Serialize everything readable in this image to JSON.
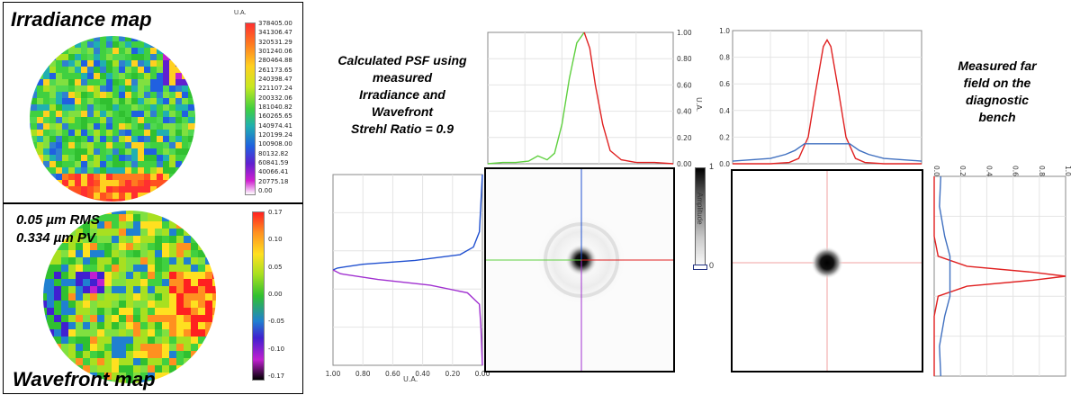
{
  "irradiance_map": {
    "title": "Irradiance map",
    "unit": "U.A.",
    "colorbar_ticks": [
      "378405.00",
      "341306.47",
      "320531.29",
      "301240.06",
      "280464.88",
      "261173.65",
      "240398.47",
      "221107.24",
      "200332.06",
      "181040.82",
      "160265.65",
      "140974.41",
      "120199.24",
      "100908.00",
      "80132.82",
      "60841.59",
      "40066.41",
      "20775.18",
      "0.00"
    ]
  },
  "wavefront_map": {
    "title": "Wavefront map",
    "rms_label": "0.05 µm RMS",
    "pv_label": "0.334 µm PV",
    "colorbar_ticks": [
      "0.17",
      "0.10",
      "0.05",
      "0.00",
      "-0.05",
      "-0.10",
      "-0.17"
    ]
  },
  "calculated_caption": [
    "Calculated PSF using",
    "measured",
    "Irradiance and",
    "Wavefront",
    "Strehl Ratio = 0.9"
  ],
  "measured_caption": [
    "Measured far",
    "field on the",
    "diagnostic",
    "bench"
  ],
  "amplitude_bar": {
    "label": "Amplitude",
    "top": "1",
    "bottom": "0"
  },
  "chart_data": [
    {
      "id": "calc-horizontal-profile",
      "type": "line",
      "ylabel": "U.A.",
      "yticks": [
        "1.00",
        "0.80",
        "0.60",
        "0.40",
        "0.20",
        "0.00"
      ],
      "ylim": [
        0,
        1
      ],
      "xlim": [
        0,
        1
      ],
      "series": [
        {
          "color": "#5fd03f",
          "x": [
            0.0,
            0.08,
            0.15,
            0.22,
            0.27,
            0.32,
            0.36,
            0.4,
            0.44,
            0.48,
            0.52
          ],
          "y": [
            0.0,
            0.01,
            0.01,
            0.02,
            0.06,
            0.03,
            0.08,
            0.3,
            0.65,
            0.92,
            1.0
          ]
        },
        {
          "color": "#e02020",
          "x": [
            0.52,
            0.55,
            0.58,
            0.62,
            0.66,
            0.72,
            0.8,
            0.9,
            1.0
          ],
          "y": [
            1.0,
            0.88,
            0.6,
            0.3,
            0.1,
            0.03,
            0.01,
            0.01,
            0.0
          ]
        }
      ]
    },
    {
      "id": "calc-vertical-profile",
      "type": "line",
      "xlabel": "U.A.",
      "xticks": [
        "1.00",
        "0.80",
        "0.60",
        "0.40",
        "0.20",
        "0.00"
      ],
      "xlim": [
        1,
        0
      ],
      "ylim": [
        0,
        1
      ],
      "series": [
        {
          "color": "#2050d0",
          "y": [
            0.0,
            0.15,
            0.3,
            0.38,
            0.42,
            0.45,
            0.47,
            0.49,
            0.5
          ],
          "x": [
            0.0,
            0.01,
            0.02,
            0.06,
            0.15,
            0.45,
            0.8,
            0.97,
            1.0
          ]
        },
        {
          "color": "#a030d0",
          "y": [
            0.5,
            0.52,
            0.55,
            0.58,
            0.62,
            0.68,
            0.8,
            1.0
          ],
          "x": [
            1.0,
            0.95,
            0.7,
            0.35,
            0.1,
            0.02,
            0.01,
            0.0
          ]
        }
      ]
    },
    {
      "id": "meas-horizontal-profile",
      "type": "line",
      "yticks": [
        "1.0",
        "0.8",
        "0.6",
        "0.4",
        "0.2",
        "0.0"
      ],
      "ylim": [
        0,
        1
      ],
      "xlim": [
        0,
        1
      ],
      "series": [
        {
          "color": "#e02020",
          "x": [
            0.0,
            0.2,
            0.3,
            0.35,
            0.4,
            0.44,
            0.48,
            0.5,
            0.52,
            0.56,
            0.6,
            0.65,
            0.7,
            0.8,
            1.0
          ],
          "y": [
            0.0,
            0.0,
            0.01,
            0.04,
            0.2,
            0.55,
            0.88,
            0.93,
            0.88,
            0.55,
            0.2,
            0.04,
            0.01,
            0.0,
            0.0
          ]
        },
        {
          "color": "#4070c0",
          "x": [
            0.0,
            0.1,
            0.2,
            0.28,
            0.33,
            0.38,
            0.62,
            0.67,
            0.72,
            0.8,
            0.9,
            1.0
          ],
          "y": [
            0.02,
            0.03,
            0.04,
            0.07,
            0.1,
            0.15,
            0.15,
            0.1,
            0.07,
            0.04,
            0.03,
            0.02
          ]
        }
      ]
    },
    {
      "id": "meas-vertical-profile",
      "type": "line",
      "xticks": [
        "0.0",
        "0.2",
        "0.4",
        "0.6",
        "0.8",
        "1.0"
      ],
      "xlim": [
        0,
        1
      ],
      "ylim": [
        0,
        1
      ],
      "series": [
        {
          "color": "#e02020",
          "y": [
            0.0,
            0.3,
            0.4,
            0.45,
            0.48,
            0.5,
            0.52,
            0.55,
            0.6,
            0.7,
            1.0
          ],
          "x": [
            0.0,
            0.0,
            0.03,
            0.25,
            0.75,
            1.0,
            0.75,
            0.25,
            0.03,
            0.0,
            0.0
          ]
        },
        {
          "color": "#4070c0",
          "y": [
            0.0,
            0.15,
            0.3,
            0.4,
            0.6,
            0.7,
            0.85,
            1.0
          ],
          "x": [
            0.05,
            0.04,
            0.08,
            0.12,
            0.12,
            0.08,
            0.04,
            0.05
          ]
        }
      ]
    }
  ]
}
